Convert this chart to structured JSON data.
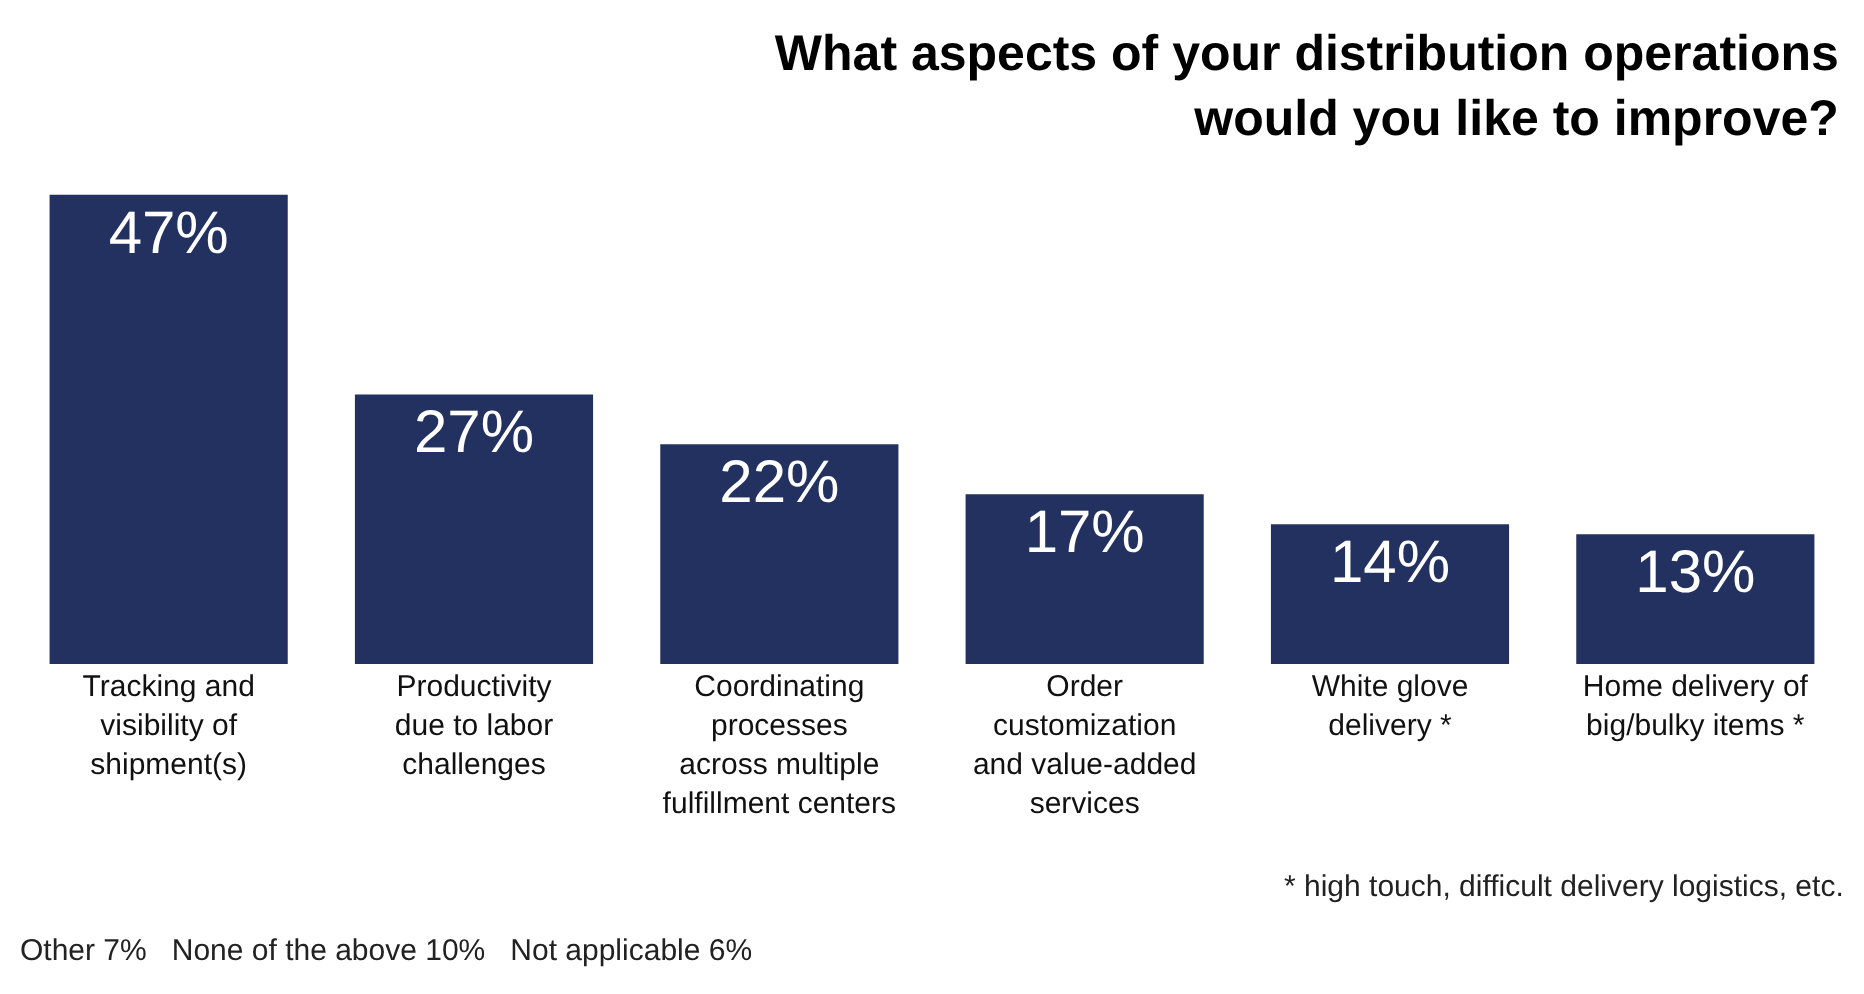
{
  "chart_data": {
    "type": "bar",
    "title": "What aspects of your distribution operations\nwould you like to improve?",
    "categories": [
      "Tracking and\nvisibility of\nshipment(s)",
      "Productivity\ndue to labor\nchallenges",
      "Coordinating\nprocesses\nacross multiple\nfulfillment centers",
      "Order\ncustomization\nand value-added\nservices",
      "White glove\ndelivery *",
      "Home delivery of\nbig/bulky items *"
    ],
    "values": [
      47,
      27,
      22,
      17,
      14,
      13
    ],
    "value_labels": [
      "47%",
      "27%",
      "22%",
      "17%",
      "14%",
      "13%"
    ],
    "color": "#22315f",
    "grid": false,
    "annotations": [
      "* high touch, difficult delivery logistics, etc.",
      "Other 7%   None of the above 10%   Not applicable 6%"
    ]
  }
}
